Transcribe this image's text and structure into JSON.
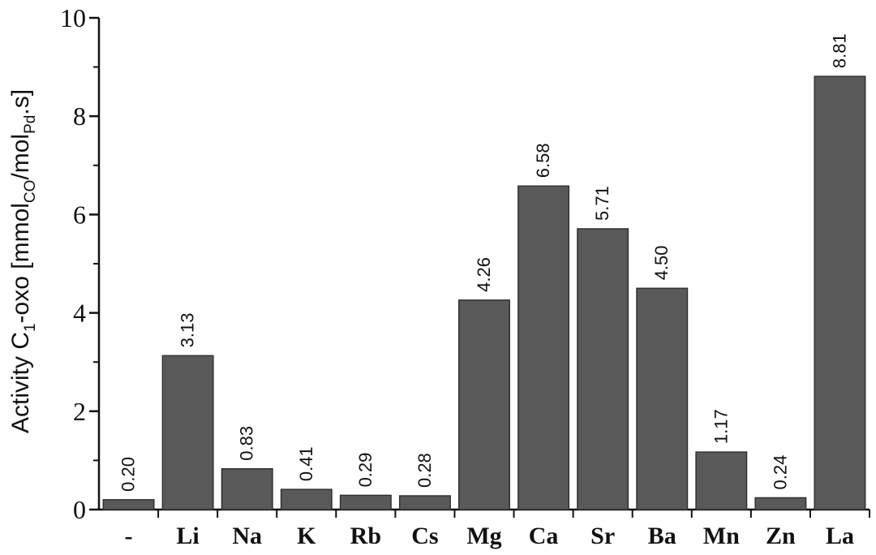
{
  "chart_data": {
    "type": "bar",
    "categories": [
      "-",
      "Li",
      "Na",
      "K",
      "Rb",
      "Cs",
      "Mg",
      "Ca",
      "Sr",
      "Ba",
      "Mn",
      "Zn",
      "La"
    ],
    "values": [
      0.2,
      3.13,
      0.83,
      0.41,
      0.29,
      0.28,
      4.26,
      6.58,
      5.71,
      4.5,
      1.17,
      0.24,
      8.81
    ],
    "value_labels": [
      "0.20",
      "3.13",
      "0.83",
      "0.41",
      "0.29",
      "0.28",
      "4.26",
      "6.58",
      "5.71",
      "4.50",
      "1.17",
      "0.24",
      "8.81"
    ],
    "ylabel": {
      "parts": [
        "Activity C",
        "1",
        "-oxo [mmol",
        "CO",
        "/mol",
        "Pd",
        ".s]"
      ]
    },
    "ylim": [
      0,
      10
    ],
    "yticks": [
      0,
      2,
      4,
      6,
      8,
      10
    ],
    "grid": false,
    "bar_color": "#595959"
  }
}
